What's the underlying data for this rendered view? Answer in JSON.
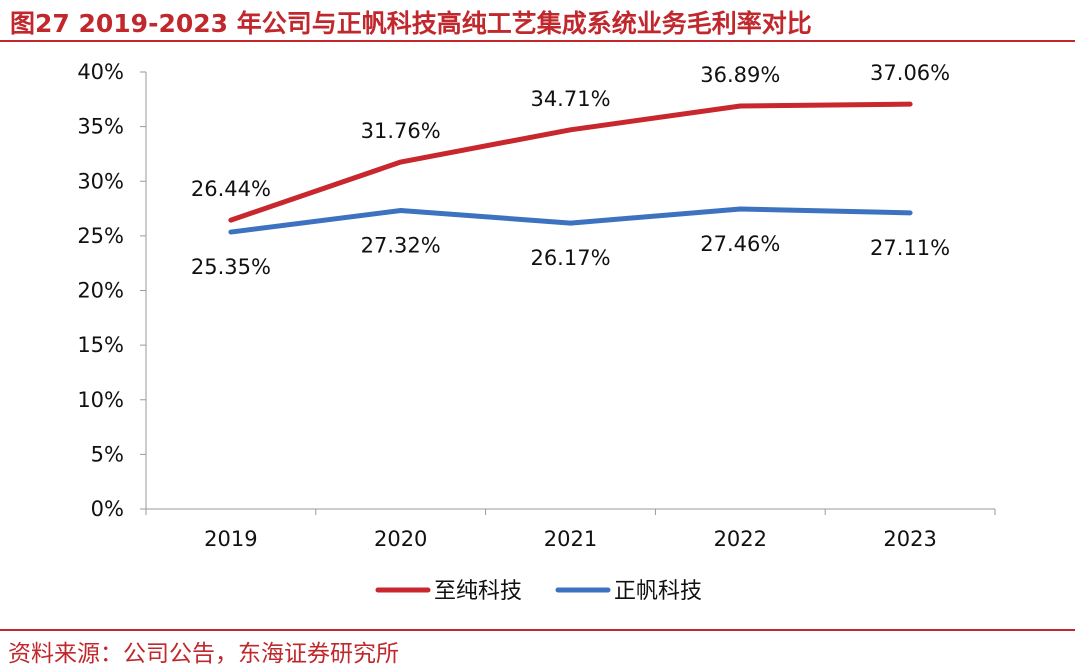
{
  "title": "图27  2019-2023 年公司与正帆科技高纯工艺集成系统业务毛利率对比",
  "source": "资料来源：公司公告，东海证券研究所",
  "colors": {
    "accent": "#C0282D",
    "series1": "#C8272D",
    "series2": "#3C72C0"
  },
  "chart_data": {
    "type": "line",
    "title": "图27  2019-2023 年公司与正帆科技高纯工艺集成系统业务毛利率对比",
    "x": [
      "2019",
      "2020",
      "2021",
      "2022",
      "2023"
    ],
    "yticks": [
      "0%",
      "5%",
      "10%",
      "15%",
      "20%",
      "25%",
      "30%",
      "35%",
      "40%"
    ],
    "ylim": [
      0,
      40
    ],
    "xlabel": "",
    "ylabel": "",
    "grid": false,
    "legend_position": "bottom",
    "series": [
      {
        "name": "至纯科技",
        "values": [
          26.44,
          31.76,
          34.71,
          36.89,
          37.06
        ],
        "labels": [
          "26.44%",
          "31.76%",
          "34.71%",
          "36.89%",
          "37.06%"
        ],
        "label_position": "above"
      },
      {
        "name": "正帆科技",
        "values": [
          25.35,
          27.32,
          26.17,
          27.46,
          27.11
        ],
        "labels": [
          "25.35%",
          "27.32%",
          "26.17%",
          "27.46%",
          "27.11%"
        ],
        "label_position": "below"
      }
    ]
  }
}
